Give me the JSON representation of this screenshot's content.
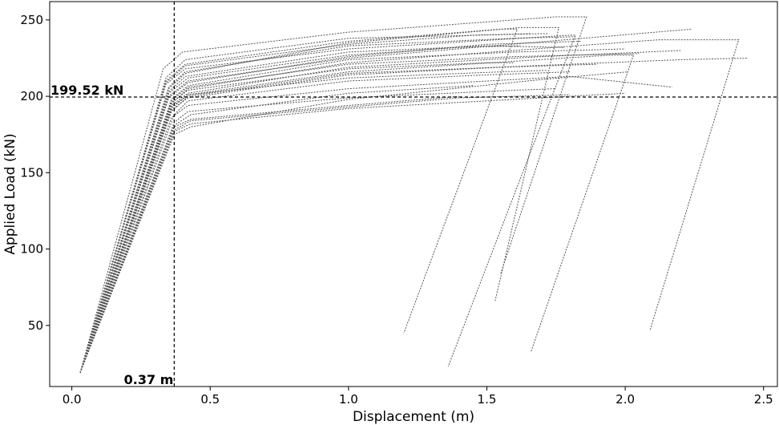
{
  "chart_data": {
    "type": "line",
    "title": "",
    "xlabel": "Displacement (m)",
    "ylabel": "Applied Load (kN)",
    "xlim": [
      -0.08,
      2.55
    ],
    "ylim": [
      10,
      262
    ],
    "xticks": [
      0.0,
      0.5,
      1.0,
      1.5,
      2.0,
      2.5
    ],
    "xtick_labels": [
      "0.0",
      "0.5",
      "1.0",
      "1.5",
      "2.0",
      "2.5"
    ],
    "yticks": [
      50,
      100,
      150,
      200,
      250
    ],
    "ytick_labels": [
      "50",
      "100",
      "150",
      "200",
      "250"
    ],
    "grid": false,
    "legend": false,
    "line_style": "dotted",
    "line_color": "#555555",
    "reference_lines": [
      {
        "orientation": "horizontal",
        "value": 199.52,
        "style": "dashed",
        "label": "199.52 kN"
      },
      {
        "orientation": "vertical",
        "value": 0.37,
        "style": "dashed",
        "label": "0.37 m"
      }
    ],
    "series": [
      {
        "x": [
          0.03,
          0.33,
          0.4,
          1.0,
          1.75,
          1.86,
          1.55
        ],
        "y": [
          19,
          218,
          229,
          242,
          252,
          252,
          84
        ]
      },
      {
        "x": [
          0.03,
          0.35,
          0.41,
          1.0,
          1.62,
          1.76,
          1.53
        ],
        "y": [
          19,
          205,
          215,
          235,
          245,
          245,
          66
        ]
      },
      {
        "x": [
          0.03,
          0.34,
          0.41,
          1.0,
          1.55,
          1.61,
          1.2
        ],
        "y": [
          19,
          210,
          221,
          236,
          244,
          244,
          45
        ]
      },
      {
        "x": [
          0.03,
          0.34,
          0.41,
          1.0,
          1.8,
          1.82,
          1.36
        ],
        "y": [
          19,
          208,
          218,
          231,
          240,
          240,
          23
        ]
      },
      {
        "x": [
          0.03,
          0.35,
          0.42,
          1.0,
          2.24
        ],
        "y": [
          19,
          200,
          210,
          225,
          244
        ]
      },
      {
        "x": [
          0.03,
          0.36,
          0.42,
          1.0,
          2.12,
          2.41,
          2.09
        ],
        "y": [
          19,
          195,
          205,
          222,
          237,
          237,
          47
        ]
      },
      {
        "x": [
          0.03,
          0.36,
          0.42,
          1.0,
          2.2,
          2.44
        ],
        "y": [
          19,
          190,
          200,
          215,
          224,
          225
        ]
      },
      {
        "x": [
          0.03,
          0.36,
          0.42,
          1.0,
          1.95,
          2.03,
          1.66
        ],
        "y": [
          19,
          192,
          201,
          216,
          227,
          227,
          33
        ]
      },
      {
        "x": [
          0.03,
          0.36,
          0.42,
          1.0,
          1.8,
          2.17
        ],
        "y": [
          19,
          186,
          194,
          205,
          213,
          206
        ]
      },
      {
        "x": [
          0.03,
          0.37,
          0.42,
          1.0,
          1.6,
          1.75
        ],
        "y": [
          19,
          183,
          190,
          199,
          204,
          205
        ]
      },
      {
        "x": [
          0.03,
          0.37,
          0.43,
          1.0,
          1.4
        ],
        "y": [
          19,
          180,
          185,
          194,
          200
        ]
      },
      {
        "x": [
          0.03,
          0.37,
          0.43,
          1.0,
          1.6,
          2.0
        ],
        "y": [
          19,
          177,
          182,
          192,
          198,
          202
        ]
      },
      {
        "x": [
          0.03,
          0.37,
          0.43,
          1.0,
          1.7,
          2.01
        ],
        "y": [
          19,
          175,
          180,
          198,
          211,
          216
        ]
      },
      {
        "x": [
          0.03,
          0.36,
          0.42,
          1.0,
          1.5,
          1.6
        ],
        "y": [
          19,
          196,
          204,
          218,
          222,
          222
        ]
      },
      {
        "x": [
          0.03,
          0.35,
          0.42,
          1.0,
          1.4,
          1.62
        ],
        "y": [
          19,
          202,
          212,
          227,
          232,
          233
        ]
      },
      {
        "x": [
          0.03,
          0.35,
          0.41,
          1.0,
          1.6,
          1.82
        ],
        "y": [
          19,
          206,
          216,
          233,
          238,
          239
        ]
      },
      {
        "x": [
          0.03,
          0.34,
          0.41,
          1.0,
          1.7,
          1.72
        ],
        "y": [
          19,
          212,
          224,
          238,
          241,
          241
        ]
      },
      {
        "x": [
          0.03,
          0.35,
          0.41,
          1.0,
          1.5,
          1.78
        ],
        "y": [
          19,
          203,
          213,
          229,
          233,
          232
        ]
      },
      {
        "x": [
          0.03,
          0.36,
          0.42,
          1.0,
          1.6,
          2.0
        ],
        "y": [
          19,
          198,
          207,
          224,
          229,
          231
        ]
      },
      {
        "x": [
          0.03,
          0.36,
          0.42,
          1.0,
          1.7,
          2.2
        ],
        "y": [
          19,
          194,
          202,
          219,
          226,
          230
        ]
      },
      {
        "x": [
          0.03,
          0.36,
          0.42,
          1.0,
          1.55,
          1.72
        ],
        "y": [
          19,
          193,
          201,
          212,
          216,
          217
        ]
      },
      {
        "x": [
          0.03,
          0.37,
          0.42,
          1.0,
          1.5,
          1.8
        ],
        "y": [
          19,
          188,
          197,
          210,
          214,
          216
        ]
      },
      {
        "x": [
          0.03,
          0.37,
          0.43,
          1.0,
          1.45
        ],
        "y": [
          19,
          181,
          188,
          202,
          207
        ]
      },
      {
        "x": [
          0.03,
          0.37,
          0.43,
          1.0,
          1.4,
          1.8
        ],
        "y": [
          19,
          178,
          184,
          193,
          199,
          201
        ]
      },
      {
        "x": [
          0.03,
          0.36,
          0.42,
          1.0,
          1.6,
          2.05
        ],
        "y": [
          19,
          197,
          206,
          221,
          226,
          228
        ]
      },
      {
        "x": [
          0.03,
          0.36,
          0.42,
          1.0,
          1.55,
          1.9
        ],
        "y": [
          19,
          191,
          199,
          214,
          219,
          221
        ]
      },
      {
        "x": [
          0.03,
          0.35,
          0.42,
          1.0,
          1.5,
          1.84
        ],
        "y": [
          19,
          199,
          209,
          226,
          234,
          236
        ]
      },
      {
        "x": [
          0.03,
          0.34,
          0.41,
          1.0,
          1.45,
          1.66
        ],
        "y": [
          19,
          209,
          220,
          234,
          240,
          241
        ]
      }
    ]
  }
}
